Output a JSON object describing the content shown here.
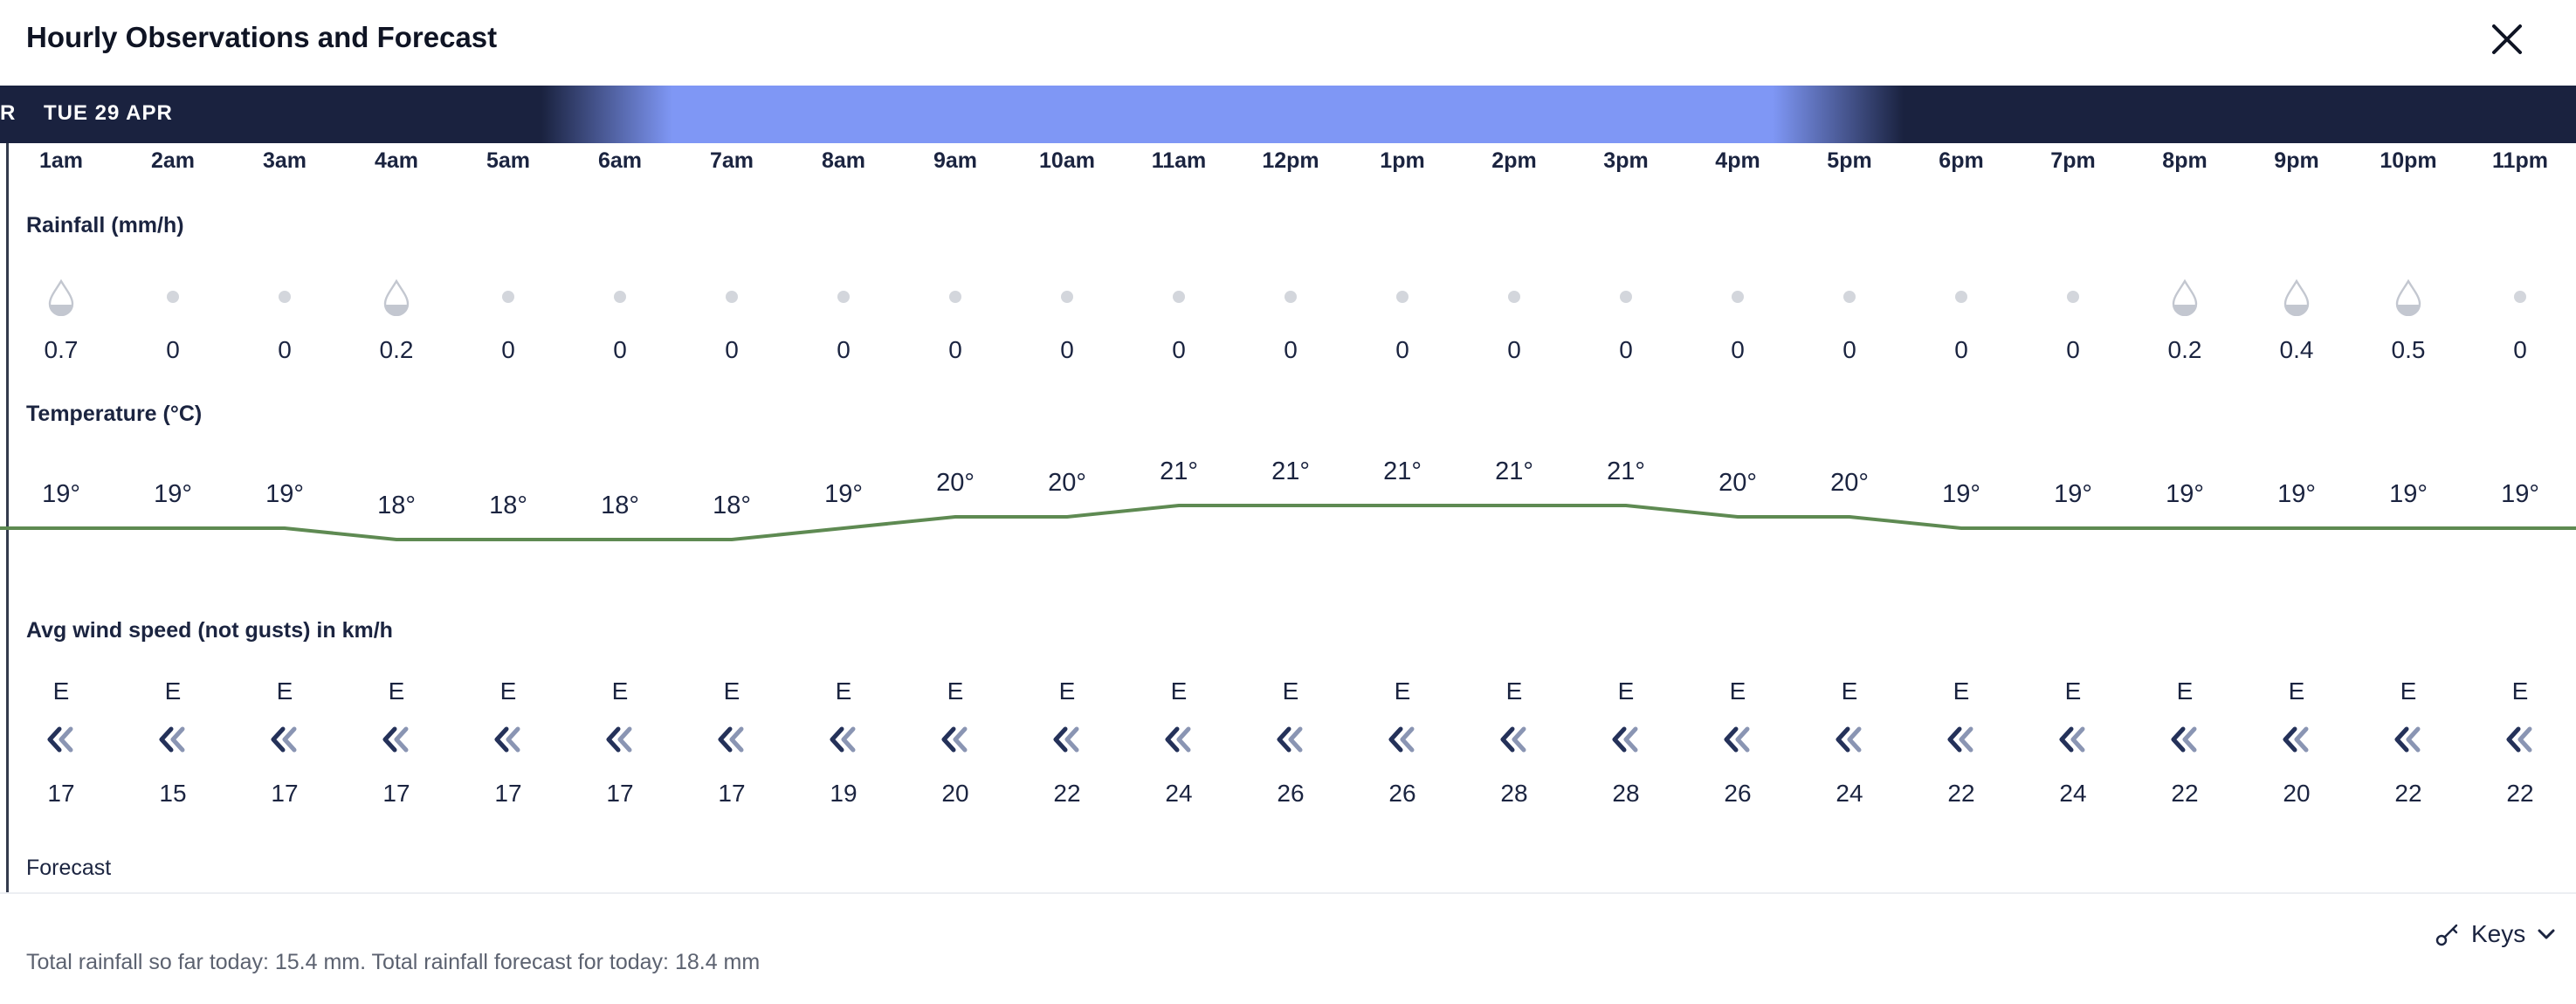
{
  "dialog": {
    "title": "Hourly Observations and Forecast",
    "close_icon": "close-icon"
  },
  "day_bar": {
    "prev_fragment": "R",
    "day_label": "TUE 29 APR",
    "colors": {
      "night": "#1a223f",
      "day": "#7f97f5"
    }
  },
  "hours": [
    "1am",
    "2am",
    "3am",
    "4am",
    "5am",
    "6am",
    "7am",
    "8am",
    "9am",
    "10am",
    "11am",
    "12pm",
    "1pm",
    "2pm",
    "3pm",
    "4pm",
    "5pm",
    "6pm",
    "7pm",
    "8pm",
    "9pm",
    "10pm",
    "11pm"
  ],
  "rainfall": {
    "label": "Rainfall (mm/h)",
    "values": [
      "0.7",
      "0",
      "0",
      "0.2",
      "0",
      "0",
      "0",
      "0",
      "0",
      "0",
      "0",
      "0",
      "0",
      "0",
      "0",
      "0",
      "0",
      "0",
      "0",
      "0.2",
      "0.4",
      "0.5",
      "0"
    ],
    "icons": [
      "drop",
      "dot",
      "dot",
      "drop",
      "dot",
      "dot",
      "dot",
      "dot",
      "dot",
      "dot",
      "dot",
      "dot",
      "dot",
      "dot",
      "dot",
      "dot",
      "dot",
      "dot",
      "dot",
      "drop",
      "drop",
      "drop",
      "dot"
    ]
  },
  "temperature": {
    "label": "Temperature (°C)",
    "values": [
      19,
      19,
      19,
      18,
      18,
      18,
      18,
      19,
      20,
      20,
      21,
      21,
      21,
      21,
      21,
      20,
      20,
      19,
      19,
      19,
      19,
      19,
      19
    ],
    "unit_suffix": "°",
    "line_color": "#5e8a52"
  },
  "wind": {
    "label": "Avg wind speed (not gusts) in km/h",
    "directions": [
      "E",
      "E",
      "E",
      "E",
      "E",
      "E",
      "E",
      "E",
      "E",
      "E",
      "E",
      "E",
      "E",
      "E",
      "E",
      "E",
      "E",
      "E",
      "E",
      "E",
      "E",
      "E",
      "E"
    ],
    "speeds": [
      "17",
      "15",
      "17",
      "17",
      "17",
      "17",
      "17",
      "19",
      "20",
      "22",
      "24",
      "26",
      "26",
      "28",
      "28",
      "26",
      "24",
      "22",
      "24",
      "22",
      "20",
      "22",
      "22"
    ],
    "arrow_icon": "wind-direction-chevrons-icon"
  },
  "forecast_label": "Forecast",
  "keys": {
    "label": "Keys",
    "icon": "key-icon",
    "chevron": "chevron-down-icon"
  },
  "totals": "Total rainfall so far today: 15.4 mm. Total rainfall forecast for today: 18.4 mm"
}
